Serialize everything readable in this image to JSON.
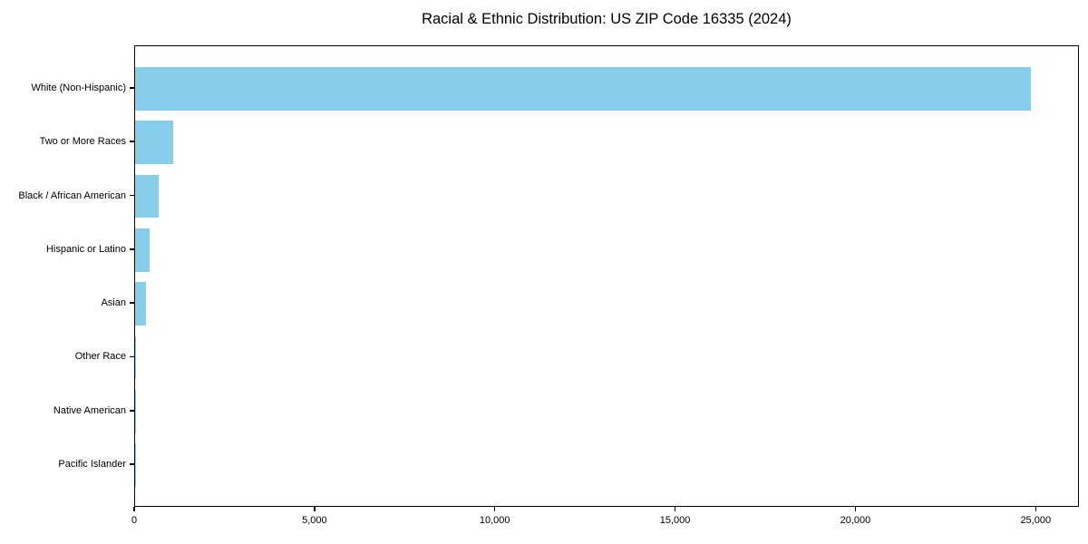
{
  "chart_data": {
    "type": "bar",
    "orientation": "horizontal",
    "title": "Racial & Ethnic Distribution: US ZIP Code 16335 (2024)",
    "categories": [
      "White (Non-Hispanic)",
      "Two or More Races",
      "Black / African American",
      "Hispanic or Latino",
      "Asian",
      "Other Race",
      "Native American",
      "Pacific Islander"
    ],
    "values": [
      24850,
      1050,
      650,
      400,
      300,
      30,
      15,
      5
    ],
    "xlabel": "",
    "ylabel": "",
    "xlim": [
      0,
      26200
    ],
    "xticks": [
      {
        "value": 0,
        "label": "0"
      },
      {
        "value": 5000,
        "label": "5,000"
      },
      {
        "value": 10000,
        "label": "10,000"
      },
      {
        "value": 15000,
        "label": "15,000"
      },
      {
        "value": 20000,
        "label": "20,000"
      },
      {
        "value": 25000,
        "label": "25,000"
      }
    ],
    "bar_color": "#87CEEB",
    "axis_color": "#000000",
    "text_color": "#000000",
    "background_color": "#ffffff",
    "grid": false,
    "legend_position": "none"
  }
}
